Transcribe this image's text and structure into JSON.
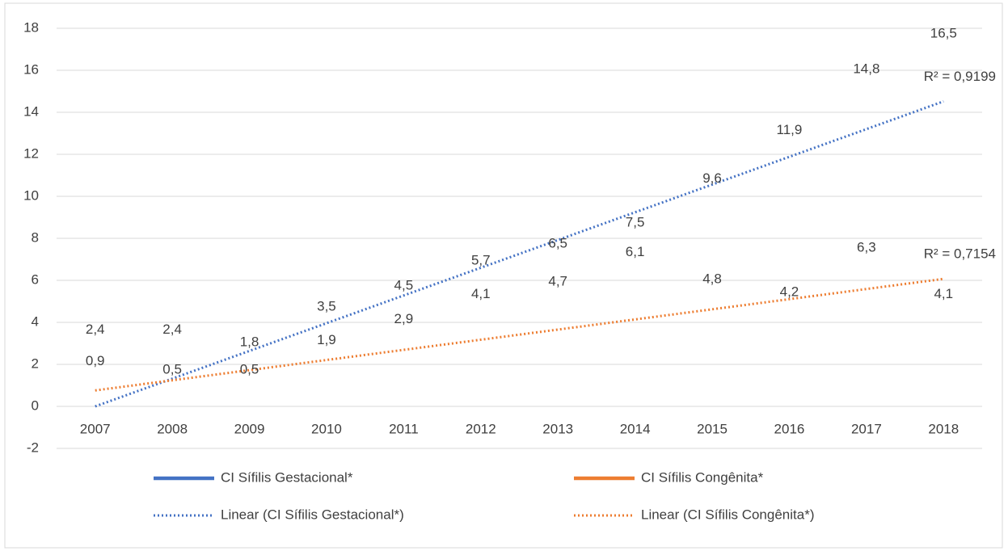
{
  "chart_data": {
    "type": "line",
    "categories": [
      "2007",
      "2008",
      "2009",
      "2010",
      "2011",
      "2012",
      "2013",
      "2014",
      "2015",
      "2016",
      "2017",
      "2018"
    ],
    "series": [
      {
        "name": "CI Sífilis Gestacional*",
        "color": "#4472c4",
        "values": [
          2.4,
          2.4,
          1.8,
          3.5,
          4.5,
          5.7,
          6.5,
          7.5,
          9.6,
          11.9,
          14.8,
          16.5
        ],
        "value_labels": [
          "2,4",
          "2,4",
          "1,8",
          "3,5",
          "4,5",
          "5,7",
          "6,5",
          "7,5",
          "9,6",
          "11,9",
          "14,8",
          "16,5"
        ]
      },
      {
        "name": "CI Sífilis Congênita*",
        "color": "#ed7d31",
        "values": [
          0.9,
          0.5,
          0.5,
          1.9,
          2.9,
          4.1,
          4.7,
          6.1,
          4.8,
          4.2,
          6.3,
          4.1
        ],
        "value_labels": [
          "0,9",
          "0,5",
          "0,5",
          "1,9",
          "2,9",
          "4,1",
          "4,7",
          "6,1",
          "4,8",
          "4,2",
          "6,3",
          "4,1"
        ]
      }
    ],
    "trendlines": [
      {
        "name": "Linear (CI Sífilis Gestacional*)",
        "color": "#4472c4",
        "values": [
          0.0,
          14.52
        ],
        "label": "R² = 0,9199"
      },
      {
        "name": "Linear (CI Sífilis Congênita*)",
        "color": "#ed7d31",
        "values": [
          0.76,
          6.07
        ],
        "label": "R² = 0,7154"
      }
    ],
    "ylim": [
      -2,
      18
    ],
    "yticks": [
      -2,
      0,
      2,
      4,
      6,
      8,
      10,
      12,
      14,
      16,
      18
    ],
    "grid": true
  }
}
